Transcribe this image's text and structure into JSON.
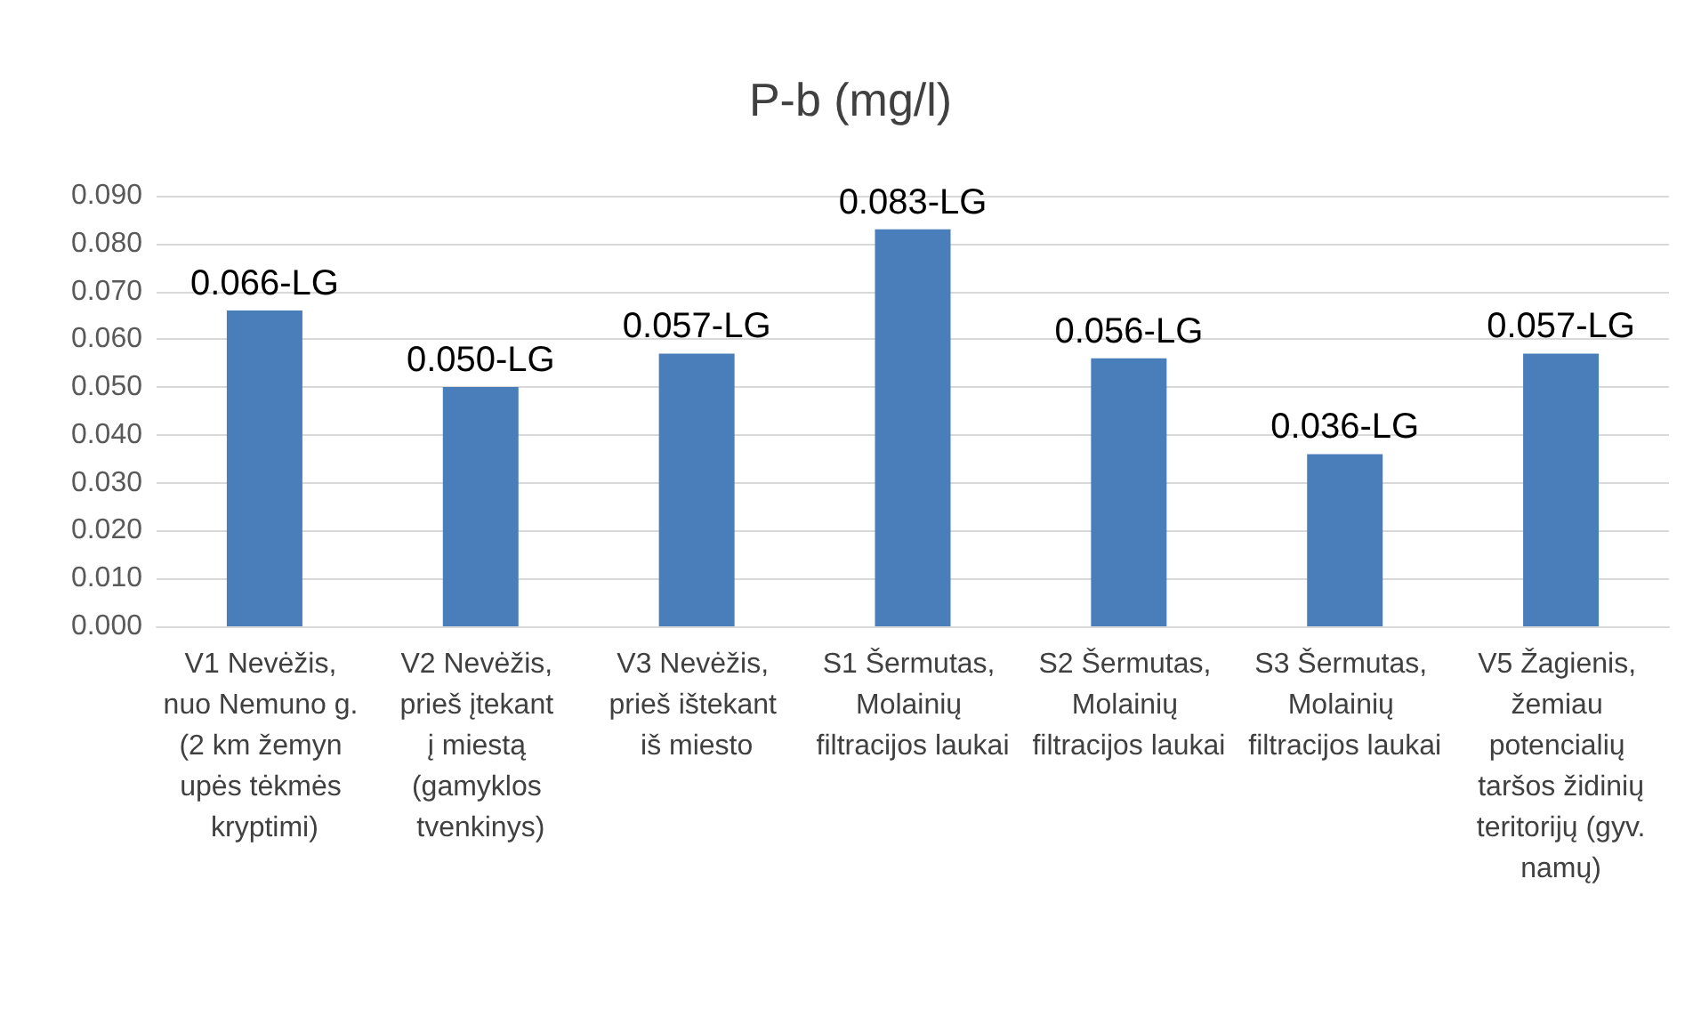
{
  "chart_data": {
    "type": "bar",
    "title": "P-b (mg/l)",
    "categories": [
      "V1 Nevėžis, nuo Nemuno g. (2 km žemyn upės tėkmės kryptimi)",
      "V2 Nevėžis, prieš įtekant į miestą (gamyklos tvenkinys)",
      "V3 Nevėžis, prieš ištekant iš miesto",
      "S1 Šermutas, Molainių filtracijos laukai",
      "S2 Šermutas, Molainių filtracijos laukai",
      "S3 Šermutas, Molainių filtracijos laukai",
      "V5 Žagienis, žemiau potencialių taršos židinių teritorijų (gyv. namų)"
    ],
    "values": [
      0.066,
      0.05,
      0.057,
      0.083,
      0.056,
      0.036,
      0.057
    ],
    "value_labels": [
      "0.066-LG",
      "0.050-LG",
      "0.057-LG",
      "0.083-LG",
      "0.056-LG",
      "0.036-LG",
      "0.057-LG"
    ],
    "color": "#4a7ebb",
    "ylim": [
      0,
      0.09
    ],
    "yticks": [
      {
        "value": 0,
        "label": "0.000"
      },
      {
        "value": 0.01,
        "label": "0.010"
      },
      {
        "value": 0.02,
        "label": "0.020"
      },
      {
        "value": 0.03,
        "label": "0.030"
      },
      {
        "value": 0.04,
        "label": "0.040"
      },
      {
        "value": 0.05,
        "label": "0.050"
      },
      {
        "value": 0.06,
        "label": "0.060"
      },
      {
        "value": 0.07,
        "label": "0.070"
      },
      {
        "value": 0.08,
        "label": "0.080"
      },
      {
        "value": 0.09,
        "label": "0.090"
      }
    ],
    "grid": "y"
  }
}
